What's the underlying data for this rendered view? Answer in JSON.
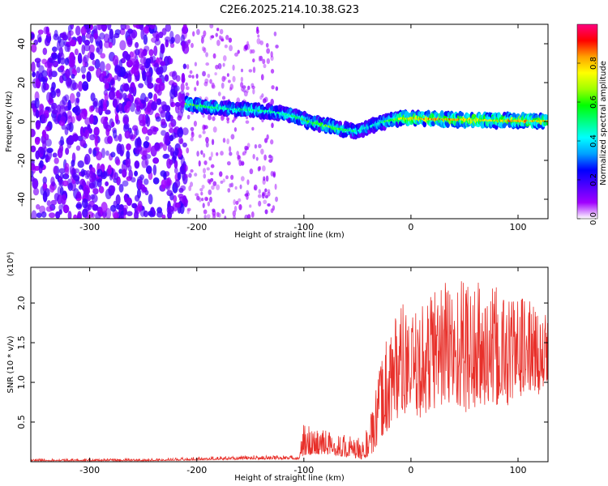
{
  "title": "C2E6.2025.214.10.38.G23",
  "chart_data": [
    {
      "type": "heatmap",
      "xlabel": "Height of straight line (km)",
      "ylabel": "Frequency (Hz)",
      "xlim": [
        -355,
        128
      ],
      "ylim": [
        -50,
        50
      ],
      "xticks": [
        -300,
        -200,
        -100,
        0,
        100
      ],
      "yticks": [
        -40,
        -20,
        0,
        20,
        40
      ],
      "colorbar": {
        "label": "Normalized spectral amplitude",
        "range": [
          0,
          1
        ],
        "ticks": [
          "0.0",
          "0.2",
          "0.4",
          "0.6",
          "0.8"
        ],
        "tick_values": [
          0,
          0.2,
          0.4,
          0.6,
          0.8
        ],
        "colormap": [
          "#ffffff",
          "#a000ff",
          "#5000ff",
          "#0000ff",
          "#00a0ff",
          "#00ffff",
          "#00ff80",
          "#00ff00",
          "#a0ff00",
          "#ffff00",
          "#ffa000",
          "#ff0000",
          "#ff0080"
        ]
      },
      "ridge": {
        "x": [
          -210,
          -190,
          -170,
          -150,
          -130,
          -110,
          -95,
          -80,
          -65,
          -50,
          -40,
          -30,
          -20,
          -10,
          0,
          20,
          40,
          60,
          80,
          100,
          128
        ],
        "freq": [
          9,
          7.5,
          6.5,
          6,
          5,
          3,
          0,
          -2,
          -4,
          -5,
          -3,
          -1,
          0.5,
          1.5,
          1.5,
          1.2,
          1,
          0.8,
          0.5,
          0.3,
          0.2
        ],
        "amplitude": [
          0.6,
          0.5,
          0.45,
          0.5,
          0.45,
          0.5,
          0.55,
          0.6,
          0.55,
          0.45,
          0.4,
          0.45,
          0.55,
          0.65,
          0.75,
          0.8,
          0.75,
          0.8,
          0.7,
          0.8,
          0.75
        ]
      },
      "noise_region": [
        -355,
        -210
      ],
      "sparse_region": [
        -210,
        -125
      ]
    },
    {
      "type": "line",
      "xlabel": "Height of straight line (km)",
      "ylabel": "SNR (10 * v/v)",
      "y_multiplier": "(x10⁴)",
      "xlim": [
        -355,
        128
      ],
      "ylim": [
        0,
        2.45
      ],
      "xticks": [
        -300,
        -200,
        -100,
        0,
        100
      ],
      "yticks": [
        "0.5",
        "1.0",
        "1.5",
        "2.0"
      ],
      "ytick_values": [
        0.5,
        1.0,
        1.5,
        2.0
      ],
      "series": [
        {
          "color": "#e8302a",
          "envelope_x": [
            -355,
            -250,
            -200,
            -150,
            -105,
            -100,
            -80,
            -60,
            -45,
            -35,
            -28,
            -20,
            -15,
            -10,
            0,
            10,
            25,
            40,
            55,
            70,
            90,
            110,
            128
          ],
          "envelope_low": [
            0.01,
            0.01,
            0.02,
            0.03,
            0.03,
            0.08,
            0.1,
            0.06,
            0.03,
            0.1,
            0.3,
            0.4,
            0.5,
            0.6,
            0.6,
            0.55,
            0.7,
            0.7,
            0.6,
            0.7,
            0.7,
            0.9,
            0.8
          ],
          "envelope_high": [
            0.04,
            0.04,
            0.06,
            0.08,
            0.08,
            0.5,
            0.42,
            0.35,
            0.3,
            0.7,
            1.3,
            1.8,
            2.0,
            2.05,
            1.8,
            2.0,
            2.4,
            2.35,
            2.4,
            2.2,
            2.2,
            2.05,
            1.85
          ]
        }
      ]
    }
  ]
}
